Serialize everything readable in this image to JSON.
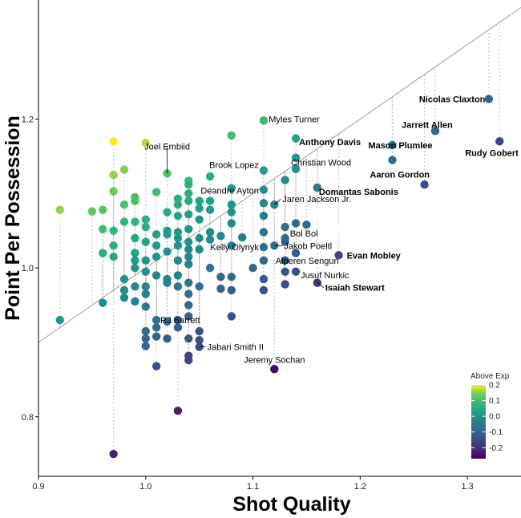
{
  "chart_data": {
    "type": "scatter",
    "title": "",
    "xlabel": "Shot Quality",
    "ylabel": "Point Per Possession",
    "xlim": [
      0.9,
      1.35
    ],
    "ylim": [
      0.72,
      1.36
    ],
    "xticks": [
      0.9,
      1.0,
      1.1,
      1.2,
      1.3
    ],
    "yticks": [
      0.8,
      1.0,
      1.2
    ],
    "x_tick_labels": [
      "0.9",
      "1.0",
      "1.1",
      "1.2",
      "1.3"
    ],
    "y_tick_labels": [
      "0.8",
      "1.0",
      "1.2"
    ],
    "reference_line": "y = x",
    "legend": {
      "title": "Above Exp",
      "position": "bottom-right",
      "ticks": [
        0.2,
        0.1,
        0.0,
        -0.1,
        -0.2
      ],
      "tick_labels": [
        "0.2",
        "0.1",
        "0.0",
        "-0.1",
        "-0.2"
      ],
      "range": [
        -0.27,
        0.2
      ]
    },
    "colors": {
      "highlight_purple": "#7b3f8c",
      "highlight_orange": "#e8684a",
      "reference_line": "#888888",
      "drop_line": "#bbbbbb"
    },
    "points": [
      {
        "x": 0.92,
        "y": 1.078
      },
      {
        "x": 0.92,
        "y": 0.93
      },
      {
        "x": 0.95,
        "y": 1.076
      },
      {
        "x": 0.96,
        "y": 1.078
      },
      {
        "x": 0.96,
        "y": 1.052
      },
      {
        "x": 0.96,
        "y": 1.02
      },
      {
        "x": 0.96,
        "y": 0.953
      },
      {
        "x": 0.97,
        "y": 1.17
      },
      {
        "x": 0.97,
        "y": 1.125
      },
      {
        "x": 0.97,
        "y": 1.103
      },
      {
        "x": 0.97,
        "y": 1.05
      },
      {
        "x": 0.97,
        "y": 1.03
      },
      {
        "x": 0.97,
        "y": 1.015
      },
      {
        "x": 0.97,
        "y": 0.75
      },
      {
        "x": 0.98,
        "y": 1.132
      },
      {
        "x": 0.98,
        "y": 1.085
      },
      {
        "x": 0.98,
        "y": 1.062
      },
      {
        "x": 0.98,
        "y": 0.985
      },
      {
        "x": 0.98,
        "y": 0.97
      },
      {
        "x": 0.98,
        "y": 0.96
      },
      {
        "x": 0.99,
        "y": 1.095
      },
      {
        "x": 0.99,
        "y": 1.09
      },
      {
        "x": 0.99,
        "y": 1.062
      },
      {
        "x": 0.99,
        "y": 1.04
      },
      {
        "x": 0.99,
        "y": 1.02
      },
      {
        "x": 0.99,
        "y": 1.01
      },
      {
        "x": 0.99,
        "y": 1.0
      },
      {
        "x": 0.99,
        "y": 0.975
      },
      {
        "x": 0.99,
        "y": 0.955
      },
      {
        "x": 1.0,
        "y": 1.168
      },
      {
        "x": 1.0,
        "y": 1.065
      },
      {
        "x": 1.0,
        "y": 1.055
      },
      {
        "x": 1.0,
        "y": 1.035
      },
      {
        "x": 1.0,
        "y": 1.01
      },
      {
        "x": 1.0,
        "y": 0.995
      },
      {
        "x": 1.0,
        "y": 0.975
      },
      {
        "x": 1.0,
        "y": 0.965
      },
      {
        "x": 1.0,
        "y": 0.948
      },
      {
        "x": 1.0,
        "y": 0.915
      },
      {
        "x": 1.0,
        "y": 0.905
      },
      {
        "x": 1.0,
        "y": 0.895
      },
      {
        "x": 1.01,
        "y": 1.102
      },
      {
        "x": 1.01,
        "y": 1.045
      },
      {
        "x": 1.01,
        "y": 1.03
      },
      {
        "x": 1.01,
        "y": 1.015
      },
      {
        "x": 1.01,
        "y": 0.99
      },
      {
        "x": 1.01,
        "y": 0.93
      },
      {
        "x": 1.01,
        "y": 0.92
      },
      {
        "x": 1.01,
        "y": 0.908
      },
      {
        "x": 1.01,
        "y": 0.868
      },
      {
        "x": 1.02,
        "y": 1.127
      },
      {
        "x": 1.02,
        "y": 1.075
      },
      {
        "x": 1.02,
        "y": 1.05
      },
      {
        "x": 1.02,
        "y": 1.045
      },
      {
        "x": 1.02,
        "y": 1.022
      },
      {
        "x": 1.02,
        "y": 0.985
      },
      {
        "x": 1.02,
        "y": 0.98
      },
      {
        "x": 1.02,
        "y": 0.928
      },
      {
        "x": 1.02,
        "y": 0.905
      },
      {
        "x": 1.03,
        "y": 1.093
      },
      {
        "x": 1.03,
        "y": 1.085
      },
      {
        "x": 1.03,
        "y": 1.07
      },
      {
        "x": 1.03,
        "y": 1.048
      },
      {
        "x": 1.03,
        "y": 1.04
      },
      {
        "x": 1.03,
        "y": 1.03
      },
      {
        "x": 1.03,
        "y": 1.01
      },
      {
        "x": 1.03,
        "y": 0.99
      },
      {
        "x": 1.03,
        "y": 0.975
      },
      {
        "x": 1.03,
        "y": 0.93
      },
      {
        "x": 1.03,
        "y": 0.92
      },
      {
        "x": 1.03,
        "y": 0.808
      },
      {
        "x": 1.04,
        "y": 1.117
      },
      {
        "x": 1.04,
        "y": 1.112
      },
      {
        "x": 1.04,
        "y": 1.1
      },
      {
        "x": 1.04,
        "y": 1.09
      },
      {
        "x": 1.04,
        "y": 1.072
      },
      {
        "x": 1.04,
        "y": 1.052
      },
      {
        "x": 1.04,
        "y": 1.035
      },
      {
        "x": 1.04,
        "y": 1.025
      },
      {
        "x": 1.04,
        "y": 1.015
      },
      {
        "x": 1.04,
        "y": 1.005
      },
      {
        "x": 1.04,
        "y": 0.98
      },
      {
        "x": 1.04,
        "y": 0.965
      },
      {
        "x": 1.04,
        "y": 0.95
      },
      {
        "x": 1.04,
        "y": 0.935
      },
      {
        "x": 1.04,
        "y": 0.905
      },
      {
        "x": 1.04,
        "y": 0.882
      },
      {
        "x": 1.04,
        "y": 0.876
      },
      {
        "x": 1.05,
        "y": 1.09
      },
      {
        "x": 1.05,
        "y": 1.08
      },
      {
        "x": 1.05,
        "y": 1.065
      },
      {
        "x": 1.05,
        "y": 1.04
      },
      {
        "x": 1.05,
        "y": 1.025
      },
      {
        "x": 1.05,
        "y": 0.975
      },
      {
        "x": 1.05,
        "y": 0.915
      },
      {
        "x": 1.05,
        "y": 0.903
      },
      {
        "x": 1.05,
        "y": 0.894
      },
      {
        "x": 1.06,
        "y": 1.123
      },
      {
        "x": 1.06,
        "y": 1.09
      },
      {
        "x": 1.06,
        "y": 1.078
      },
      {
        "x": 1.06,
        "y": 1.048
      },
      {
        "x": 1.06,
        "y": 1.038
      },
      {
        "x": 1.06,
        "y": 1.0
      },
      {
        "x": 1.07,
        "y": 1.043
      },
      {
        "x": 1.07,
        "y": 0.988
      },
      {
        "x": 1.07,
        "y": 0.972
      },
      {
        "x": 1.08,
        "y": 1.178
      },
      {
        "x": 1.08,
        "y": 1.107
      },
      {
        "x": 1.08,
        "y": 1.085
      },
      {
        "x": 1.08,
        "y": 1.075
      },
      {
        "x": 1.08,
        "y": 1.06
      },
      {
        "x": 1.08,
        "y": 1.03
      },
      {
        "x": 1.08,
        "y": 0.988
      },
      {
        "x": 1.08,
        "y": 0.97
      },
      {
        "x": 1.08,
        "y": 0.935
      },
      {
        "x": 1.09,
        "y": 1.041
      },
      {
        "x": 1.1,
        "y": 1.0
      },
      {
        "x": 1.11,
        "y": 1.198
      },
      {
        "x": 1.11,
        "y": 1.131
      },
      {
        "x": 1.11,
        "y": 1.105
      },
      {
        "x": 1.11,
        "y": 1.087
      },
      {
        "x": 1.11,
        "y": 1.07
      },
      {
        "x": 1.11,
        "y": 1.048
      },
      {
        "x": 1.11,
        "y": 1.028
      },
      {
        "x": 1.11,
        "y": 1.01
      },
      {
        "x": 1.11,
        "y": 0.985
      },
      {
        "x": 1.11,
        "y": 0.97
      },
      {
        "x": 1.12,
        "y": 1.085
      },
      {
        "x": 1.12,
        "y": 1.03
      },
      {
        "x": 1.12,
        "y": 0.864
      },
      {
        "x": 1.13,
        "y": 1.118
      },
      {
        "x": 1.13,
        "y": 1.055
      },
      {
        "x": 1.13,
        "y": 1.04
      },
      {
        "x": 1.13,
        "y": 1.035
      },
      {
        "x": 1.13,
        "y": 1.01
      },
      {
        "x": 1.13,
        "y": 0.995
      },
      {
        "x": 1.13,
        "y": 0.978
      },
      {
        "x": 1.14,
        "y": 1.174
      },
      {
        "x": 1.14,
        "y": 1.148
      },
      {
        "x": 1.14,
        "y": 1.133
      },
      {
        "x": 1.14,
        "y": 1.06
      },
      {
        "x": 1.14,
        "y": 1.02
      },
      {
        "x": 1.14,
        "y": 0.995
      },
      {
        "x": 1.15,
        "y": 1.058
      },
      {
        "x": 1.16,
        "y": 1.108
      },
      {
        "x": 1.16,
        "y": 0.98
      },
      {
        "x": 1.18,
        "y": 1.017
      },
      {
        "x": 1.23,
        "y": 1.165
      },
      {
        "x": 1.23,
        "y": 1.145
      },
      {
        "x": 1.26,
        "y": 1.112
      },
      {
        "x": 1.27,
        "y": 1.184
      },
      {
        "x": 1.32,
        "y": 1.227
      },
      {
        "x": 1.33,
        "y": 1.17
      }
    ],
    "labels": [
      {
        "text": "Joel Embiid",
        "x": 1.02,
        "y": 1.127,
        "dx": 0,
        "dy": -30,
        "anchor": "middle",
        "style": "normal",
        "leader": true
      },
      {
        "text": "Myles Turner",
        "x": 1.14,
        "y": 1.174,
        "dx": -2,
        "dy": -20,
        "anchor": "middle",
        "style": "normal",
        "leader": false
      },
      {
        "text": "Anthony Davis",
        "x": 1.14,
        "y": 1.148,
        "dx": 4,
        "dy": -16,
        "anchor": "start",
        "style": "orange",
        "leader": false
      },
      {
        "text": "Christian Wood",
        "x": 1.14,
        "y": 1.133,
        "dx": -6,
        "dy": -4,
        "anchor": "start",
        "style": "normal",
        "leader": false
      },
      {
        "text": "Brook Lopez",
        "x": 1.11,
        "y": 1.131,
        "dx": -6,
        "dy": -3,
        "anchor": "end",
        "style": "normal",
        "leader": false
      },
      {
        "text": "Deandre Ayton",
        "x": 1.11,
        "y": 1.087,
        "dx": -6,
        "dy": -12,
        "anchor": "end",
        "style": "normal",
        "leader": false
      },
      {
        "text": "Jaren Jackson Jr.",
        "x": 1.12,
        "y": 1.085,
        "dx": 10,
        "dy": -3,
        "anchor": "start",
        "style": "normal",
        "leader": true
      },
      {
        "text": "Bol Bol",
        "x": 1.13,
        "y": 1.055,
        "dx": 6,
        "dy": 12,
        "anchor": "start",
        "style": "normal",
        "leader": false
      },
      {
        "text": "Kelly Olynyk",
        "x": 1.11,
        "y": 1.028,
        "dx": -6,
        "dy": 4,
        "anchor": "end",
        "style": "normal",
        "leader": false
      },
      {
        "text": "Jakob Poeltl",
        "x": 1.12,
        "y": 1.03,
        "dx": 12,
        "dy": 4,
        "anchor": "start",
        "style": "normal",
        "leader": true
      },
      {
        "text": "Alperen Sengun",
        "x": 1.13,
        "y": 1.01,
        "dx": -12,
        "dy": 4,
        "anchor": "start",
        "style": "normal",
        "leader": false
      },
      {
        "text": "Jusuf Nurkic",
        "x": 1.14,
        "y": 0.995,
        "dx": 6,
        "dy": 8,
        "anchor": "start",
        "style": "normal",
        "leader": false
      },
      {
        "text": "RJ Barrett",
        "x": 1.01,
        "y": 0.93,
        "dx": 5,
        "dy": 4,
        "anchor": "start",
        "style": "normal",
        "leader": false
      },
      {
        "text": "Jabari Smith II",
        "x": 1.05,
        "y": 0.894,
        "dx": 10,
        "dy": 4,
        "anchor": "start",
        "style": "normal",
        "leader": true
      },
      {
        "text": "Jeremy Sochan",
        "x": 1.12,
        "y": 0.864,
        "dx": 0,
        "dy": -8,
        "anchor": "middle",
        "style": "normal",
        "leader": false
      },
      {
        "text": "Domantas Sabonis",
        "x": 1.16,
        "y": 1.108,
        "dx": 2,
        "dy": 9,
        "anchor": "start",
        "style": "purple",
        "leader": false
      },
      {
        "text": "Evan Mobley",
        "x": 1.18,
        "y": 1.017,
        "dx": 10,
        "dy": 4,
        "anchor": "start",
        "style": "purple",
        "leader": false
      },
      {
        "text": "Isaiah Stewart",
        "x": 1.16,
        "y": 0.98,
        "dx": 10,
        "dy": 10,
        "anchor": "start",
        "style": "purple",
        "leader": true
      },
      {
        "text": "Mason Plumlee",
        "x": 1.23,
        "y": 1.165,
        "dx": -30,
        "dy": 4,
        "anchor": "start",
        "style": "purple",
        "leader": false
      },
      {
        "text": "Aaron Gordon",
        "x": 1.23,
        "y": 1.145,
        "dx": -28,
        "dy": 22,
        "anchor": "start",
        "style": "purple",
        "leader": false
      },
      {
        "text": "Jarrett Allen",
        "x": 1.27,
        "y": 1.184,
        "dx": -42,
        "dy": -4,
        "anchor": "start",
        "style": "purple",
        "leader": false
      },
      {
        "text": "Nicolas Claxton",
        "x": 1.32,
        "y": 1.227,
        "dx": -87,
        "dy": 4,
        "anchor": "start",
        "style": "purple",
        "leader": false
      },
      {
        "text": "Rudy Gobert",
        "x": 1.33,
        "y": 1.17,
        "dx": -43,
        "dy": 18,
        "anchor": "start",
        "style": "purple",
        "leader": false
      }
    ]
  }
}
